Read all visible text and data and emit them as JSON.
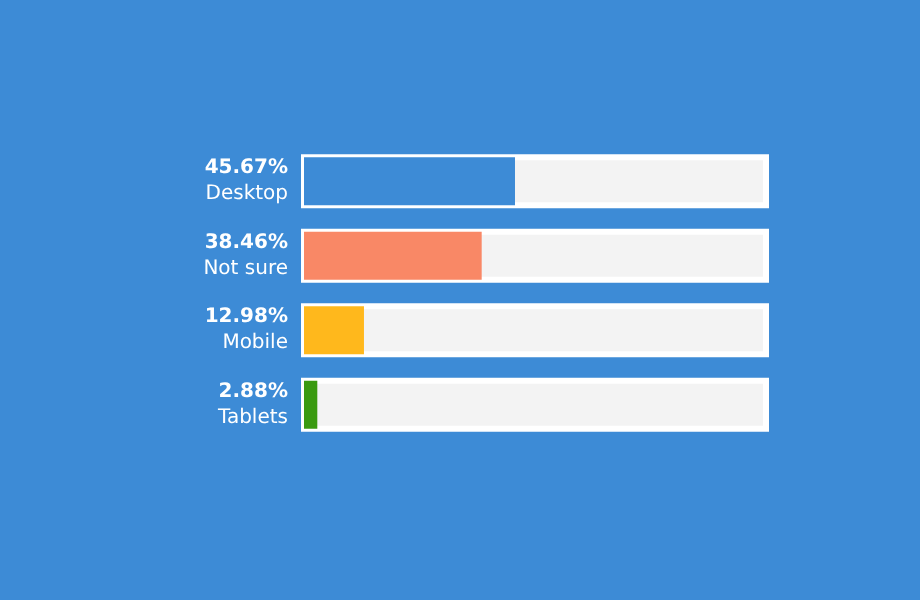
{
  "chart_data": {
    "type": "bar",
    "orientation": "horizontal",
    "categories": [
      "Desktop",
      "Not sure",
      "Mobile",
      "Tablets"
    ],
    "values": [
      45.67,
      38.46,
      12.98,
      2.88
    ],
    "colors": [
      "#3d8bd6",
      "#f98866",
      "#ffb81c",
      "#3a9a10"
    ],
    "value_labels": [
      "45.67%",
      "38.46%",
      "12.98%",
      "2.88%"
    ],
    "xlim": [
      0,
      100
    ]
  }
}
